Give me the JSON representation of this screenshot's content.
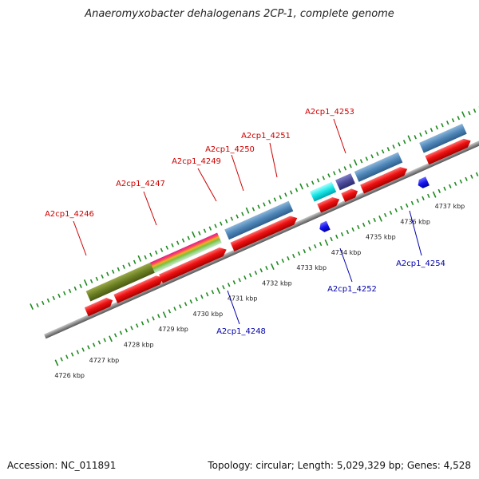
{
  "title": "Anaeromyxobacter dehalogenans 2CP-1, complete genome",
  "footer": {
    "accession": "Accession: NC_011891",
    "summary": "Topology: circular; Length: 5,029,329 bp; Genes: 4,528"
  },
  "colors": {
    "backbone": "#8a8a8a",
    "forward_gene": "#ee1111",
    "reverse_gene": "#1111ee",
    "forward_label": "#cc0000",
    "reverse_label": "#0000aa",
    "tick": "#1f8a1f",
    "tick_label": "#222222"
  },
  "tick_labels": [
    "4726 kbp",
    "4727 kbp",
    "4728 kbp",
    "4729 kbp",
    "4730 kbp",
    "4731 kbp",
    "4732 kbp",
    "4733 kbp",
    "4734 kbp",
    "4735 kbp",
    "4736 kbp",
    "4737 kbp"
  ],
  "forward_labels": [
    "A2cp1_4246",
    "A2cp1_4247",
    "A2cp1_4249",
    "A2cp1_4250",
    "A2cp1_4251",
    "A2cp1_4253"
  ],
  "reverse_labels": [
    "A2cp1_4248",
    "A2cp1_4252",
    "A2cp1_4254"
  ]
}
